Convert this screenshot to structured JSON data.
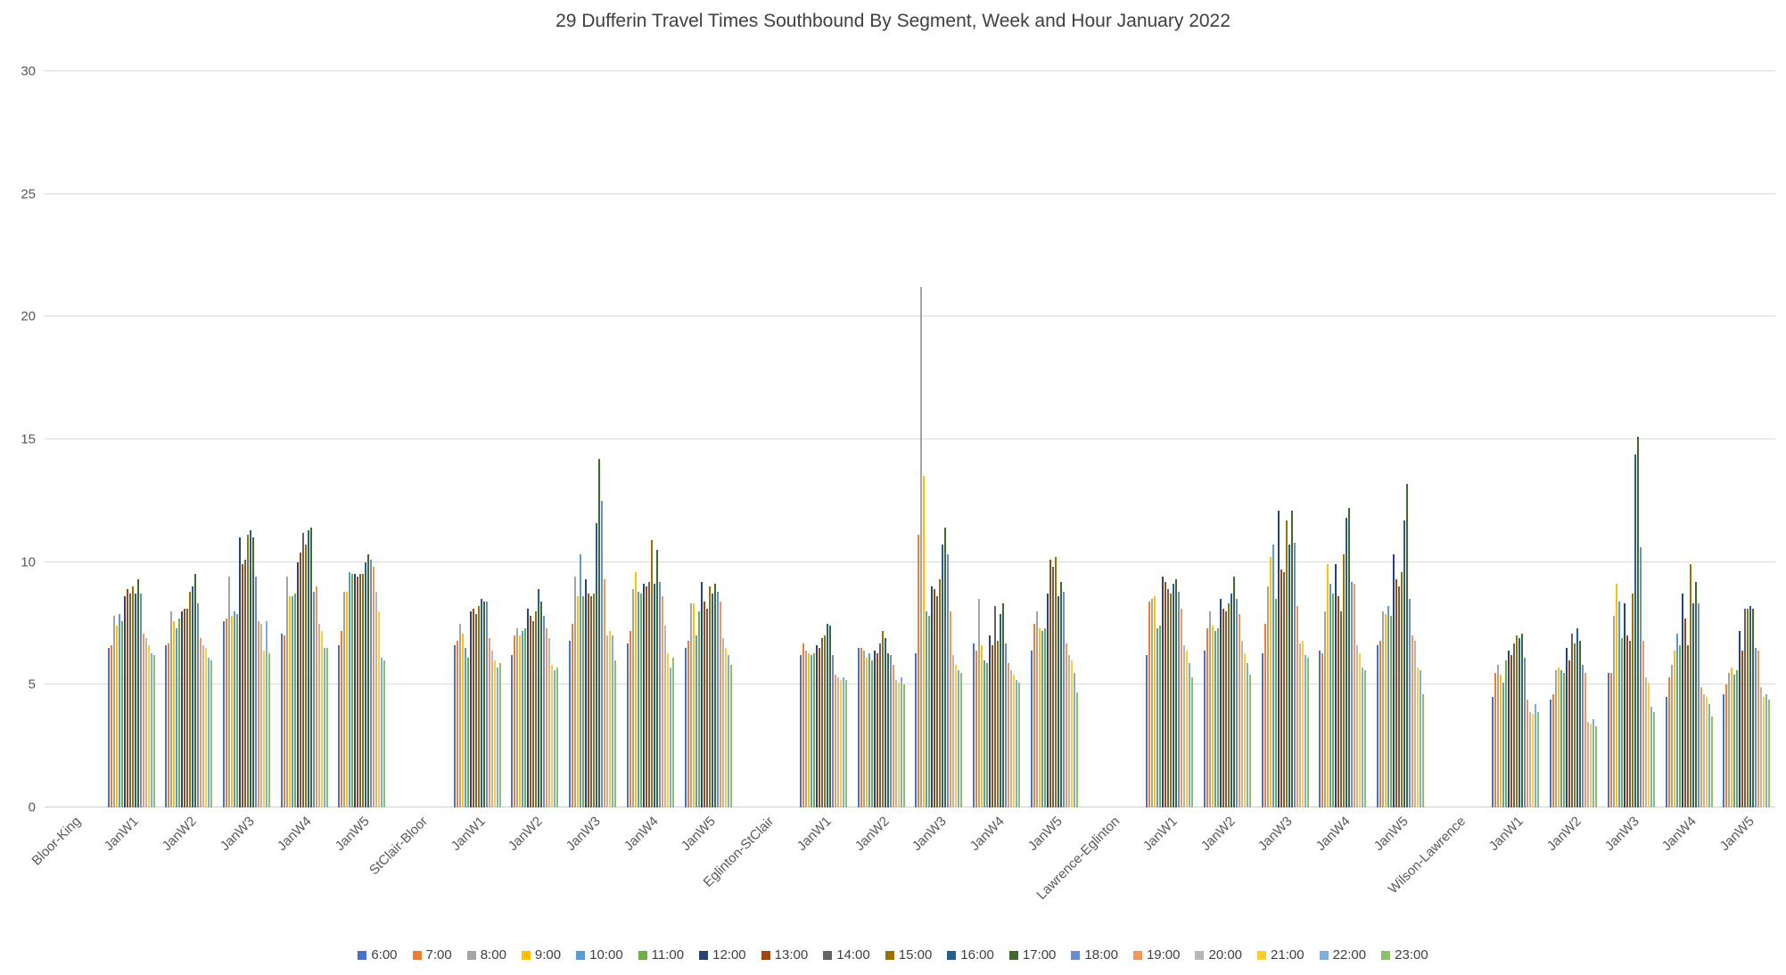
{
  "title": "29 Dufferin Travel Times Southbound By Segment, Week and Hour January 2022",
  "chart_data": {
    "type": "bar",
    "title": "29 Dufferin Travel Times Southbound By Segment, Week and Hour January 2022",
    "xlabel": "",
    "ylabel": "",
    "ylim": [
      0,
      30
    ],
    "yticks": [
      0,
      5,
      10,
      15,
      20,
      25,
      30
    ],
    "grid": true,
    "legend_position": "bottom",
    "series_names": [
      "6:00",
      "7:00",
      "8:00",
      "9:00",
      "10:00",
      "11:00",
      "12:00",
      "13:00",
      "14:00",
      "15:00",
      "16:00",
      "17:00",
      "18:00",
      "19:00",
      "20:00",
      "21:00",
      "22:00",
      "23:00"
    ],
    "series_colors": [
      "#4472C4",
      "#ED7D31",
      "#A5A5A5",
      "#FFC000",
      "#5B9BD5",
      "#70AD47",
      "#264478",
      "#9E480E",
      "#636363",
      "#997300",
      "#255E91",
      "#43682B",
      "#698ED0",
      "#F1975A",
      "#B7B7B7",
      "#FFCD33",
      "#7CAFDD",
      "#8CC168"
    ],
    "segments": [
      {
        "label": "Bloor-King",
        "weeks": [
          {
            "label": "JanW1",
            "values": [
              6.5,
              6.6,
              7.8,
              7.4,
              7.9,
              7.6,
              8.6,
              8.9,
              8.7,
              9.0,
              8.7,
              9.3,
              8.7,
              7.1,
              6.9,
              6.6,
              6.3,
              6.2
            ]
          },
          {
            "label": "JanW2",
            "values": [
              6.6,
              6.7,
              8.0,
              7.6,
              7.3,
              7.7,
              8.0,
              8.1,
              8.1,
              8.8,
              9.0,
              9.5,
              8.3,
              6.9,
              6.6,
              6.5,
              6.1,
              6.0
            ]
          },
          {
            "label": "JanW3",
            "values": [
              7.6,
              7.7,
              9.4,
              7.8,
              8.0,
              7.9,
              11.0,
              9.9,
              10.1,
              11.1,
              11.3,
              11.0,
              9.4,
              7.6,
              7.5,
              6.4,
              7.6,
              6.3
            ]
          },
          {
            "label": "JanW4",
            "values": [
              7.1,
              7.0,
              9.4,
              8.6,
              8.6,
              8.7,
              10.0,
              10.4,
              11.2,
              10.7,
              11.3,
              11.4,
              8.8,
              9.0,
              7.5,
              7.2,
              6.5,
              6.5
            ]
          },
          {
            "label": "JanW5",
            "values": [
              6.6,
              7.2,
              8.8,
              8.8,
              9.6,
              9.5,
              9.5,
              9.4,
              9.5,
              9.5,
              10.0,
              10.3,
              10.1,
              9.8,
              8.8,
              8.0,
              6.1,
              6.0
            ]
          }
        ]
      },
      {
        "label": "StClair-Bloor",
        "weeks": [
          {
            "label": "JanW1",
            "values": [
              6.6,
              6.8,
              7.5,
              7.1,
              6.5,
              6.1,
              8.0,
              8.1,
              7.9,
              8.2,
              8.5,
              8.4,
              8.4,
              6.9,
              6.4,
              6.0,
              5.7,
              5.9
            ]
          },
          {
            "label": "JanW2",
            "values": [
              6.2,
              7.0,
              7.3,
              7.0,
              7.2,
              7.3,
              8.1,
              7.8,
              7.6,
              8.0,
              8.9,
              8.4,
              7.8,
              7.3,
              6.9,
              5.8,
              5.6,
              5.7
            ]
          },
          {
            "label": "JanW3",
            "values": [
              6.8,
              7.5,
              9.4,
              8.6,
              10.3,
              8.6,
              9.3,
              8.7,
              8.6,
              8.7,
              11.6,
              14.2,
              12.5,
              9.3,
              7.0,
              7.2,
              7.0,
              6.0
            ]
          },
          {
            "label": "JanW4",
            "values": [
              6.7,
              7.2,
              8.9,
              9.6,
              8.8,
              8.7,
              9.1,
              9.0,
              9.2,
              10.9,
              9.1,
              10.5,
              9.2,
              8.6,
              7.4,
              6.3,
              5.7,
              6.1
            ]
          },
          {
            "label": "JanW5",
            "values": [
              6.5,
              6.8,
              8.3,
              8.3,
              7.0,
              8.0,
              9.2,
              8.4,
              8.1,
              9.0,
              8.7,
              9.1,
              8.8,
              8.4,
              6.9,
              6.5,
              6.2,
              5.8
            ]
          }
        ]
      },
      {
        "label": "Eglinton-StClair",
        "weeks": [
          {
            "label": "JanW1",
            "values": [
              6.2,
              6.7,
              6.4,
              6.3,
              6.2,
              6.3,
              6.6,
              6.5,
              6.9,
              7.0,
              7.5,
              7.4,
              6.2,
              5.4,
              5.3,
              5.2,
              5.3,
              5.2
            ]
          },
          {
            "label": "JanW2",
            "values": [
              6.5,
              6.5,
              6.4,
              6.1,
              6.3,
              6.0,
              6.4,
              6.3,
              6.7,
              7.2,
              6.9,
              6.3,
              6.2,
              5.8,
              5.2,
              5.1,
              5.3,
              5.0
            ]
          },
          {
            "label": "JanW3",
            "values": [
              6.3,
              11.1,
              21.2,
              13.5,
              8.0,
              7.8,
              9.0,
              8.9,
              8.6,
              9.3,
              10.7,
              11.4,
              10.3,
              8.0,
              6.2,
              5.8,
              5.6,
              5.5
            ]
          },
          {
            "label": "JanW4",
            "values": [
              6.7,
              6.4,
              8.5,
              6.6,
              6.0,
              5.9,
              7.0,
              6.6,
              8.2,
              6.8,
              7.9,
              8.3,
              6.7,
              5.9,
              5.6,
              5.4,
              5.2,
              5.1
            ]
          },
          {
            "label": "JanW5",
            "values": [
              6.4,
              7.5,
              8.0,
              7.3,
              7.2,
              7.3,
              8.7,
              10.1,
              9.8,
              10.2,
              8.6,
              9.2,
              8.8,
              6.7,
              6.2,
              6.0,
              5.5,
              4.7
            ]
          }
        ]
      },
      {
        "label": "Lawrence-Eglinton",
        "weeks": [
          {
            "label": "JanW1",
            "values": [
              6.2,
              8.4,
              8.5,
              8.6,
              7.3,
              7.4,
              9.4,
              9.2,
              8.9,
              8.7,
              9.1,
              9.3,
              8.8,
              8.1,
              6.6,
              6.4,
              5.9,
              5.3
            ]
          },
          {
            "label": "JanW2",
            "values": [
              6.4,
              7.3,
              8.0,
              7.4,
              7.2,
              7.3,
              8.5,
              8.1,
              8.0,
              8.3,
              8.7,
              9.4,
              8.5,
              7.9,
              6.8,
              6.3,
              5.9,
              5.4
            ]
          },
          {
            "label": "JanW3",
            "values": [
              6.3,
              7.5,
              9.0,
              10.2,
              10.7,
              8.5,
              12.1,
              9.7,
              9.6,
              11.7,
              10.7,
              12.1,
              10.8,
              8.2,
              6.7,
              6.8,
              6.2,
              6.1
            ]
          },
          {
            "label": "JanW4",
            "values": [
              6.4,
              6.3,
              8.0,
              9.9,
              9.1,
              8.7,
              9.9,
              8.6,
              8.0,
              10.3,
              11.8,
              12.2,
              9.2,
              9.1,
              6.6,
              6.3,
              5.7,
              5.6
            ]
          },
          {
            "label": "JanW5",
            "values": [
              6.6,
              6.8,
              8.0,
              7.9,
              8.2,
              7.8,
              10.3,
              9.3,
              9.0,
              9.6,
              11.7,
              13.2,
              8.5,
              7.0,
              6.8,
              5.7,
              5.6,
              4.6
            ]
          }
        ]
      },
      {
        "label": "Wilson-Lawrence",
        "weeks": [
          {
            "label": "JanW1",
            "values": [
              4.5,
              5.5,
              5.8,
              5.4,
              5.1,
              6.0,
              6.4,
              6.2,
              6.7,
              7.0,
              6.9,
              7.1,
              6.1,
              4.4,
              3.9,
              3.8,
              4.2,
              3.9
            ]
          },
          {
            "label": "JanW2",
            "values": [
              4.4,
              4.6,
              5.6,
              5.7,
              5.6,
              5.5,
              6.5,
              6.0,
              7.1,
              6.7,
              7.3,
              6.8,
              5.8,
              5.5,
              3.5,
              3.4,
              3.6,
              3.3
            ]
          },
          {
            "label": "JanW3",
            "values": [
              5.5,
              5.5,
              7.8,
              9.1,
              8.4,
              6.9,
              8.3,
              7.0,
              6.8,
              8.7,
              14.4,
              15.1,
              10.6,
              6.8,
              5.3,
              5.1,
              4.1,
              3.9
            ]
          },
          {
            "label": "JanW4",
            "values": [
              4.5,
              5.3,
              5.8,
              6.4,
              7.1,
              6.6,
              8.7,
              7.7,
              6.6,
              9.9,
              8.3,
              9.2,
              8.3,
              4.9,
              4.6,
              4.5,
              4.2,
              3.7
            ]
          },
          {
            "label": "JanW5",
            "values": [
              4.6,
              5.0,
              5.5,
              5.7,
              5.4,
              5.6,
              7.2,
              6.4,
              8.1,
              8.1,
              8.2,
              8.1,
              6.5,
              6.4,
              4.9,
              4.5,
              4.6,
              4.4
            ]
          }
        ]
      }
    ]
  }
}
